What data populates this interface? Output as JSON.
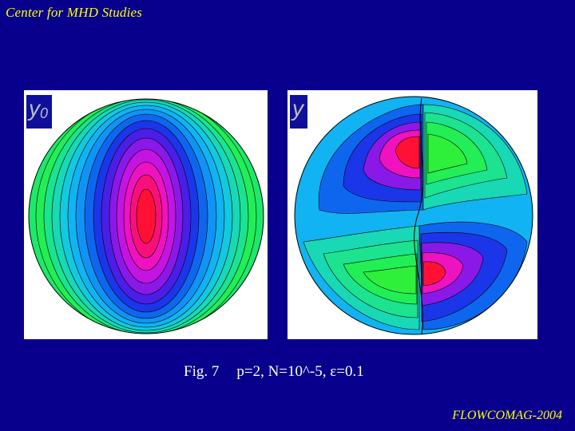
{
  "header": {
    "title": "Center for MHD Studies"
  },
  "panels": [
    {
      "label": "y",
      "subscript": "0"
    },
    {
      "label": "y",
      "subscript": ""
    }
  ],
  "caption": {
    "figure": "Fig. 7",
    "params": "p=2, N=10^-5, ε=0.1"
  },
  "footer": {
    "text": "FLOWCOMAG-2004"
  },
  "colors": {
    "background": "#08008c",
    "header_text": "#ffff00",
    "caption_text": "#ffffff",
    "label_box": "#0f0f9c"
  }
}
